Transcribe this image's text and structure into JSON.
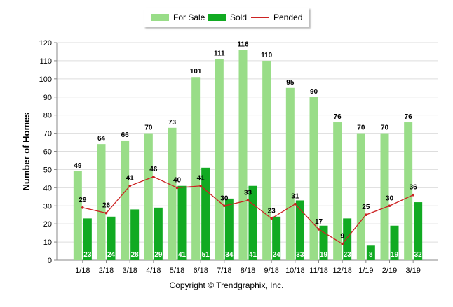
{
  "chart_data": {
    "type": "bar",
    "ylabel": "Number of Homes",
    "xlabel": "",
    "ylim": [
      0,
      120
    ],
    "yticks": [
      0,
      10,
      20,
      30,
      40,
      50,
      60,
      70,
      80,
      90,
      100,
      110,
      120
    ],
    "grid": true,
    "legend_position": "top-center",
    "categories": [
      "1/18",
      "2/18",
      "3/18",
      "4/18",
      "5/18",
      "6/18",
      "7/18",
      "8/18",
      "9/18",
      "10/18",
      "11/18",
      "12/18",
      "1/19",
      "2/19",
      "3/19"
    ],
    "series": [
      {
        "name": "For Sale",
        "type": "bar",
        "color": "#99dd88",
        "values": [
          49,
          64,
          66,
          70,
          73,
          101,
          111,
          116,
          110,
          95,
          90,
          76,
          70,
          70,
          76
        ]
      },
      {
        "name": "Sold",
        "type": "bar",
        "color": "#11aa22",
        "values": [
          23,
          24,
          28,
          29,
          41,
          51,
          34,
          41,
          24,
          33,
          19,
          23,
          8,
          19,
          32
        ]
      },
      {
        "name": "Pended",
        "type": "line",
        "color": "#cc2222",
        "values": [
          29,
          26,
          41,
          46,
          40,
          41,
          30,
          33,
          23,
          31,
          17,
          9,
          25,
          30,
          36
        ]
      }
    ]
  },
  "legend": {
    "for_sale": "For Sale",
    "sold": "Sold",
    "pended": "Pended"
  },
  "footer": {
    "copyright": "Copyright © Trendgraphix, Inc."
  },
  "colors": {
    "for_sale": "#99dd88",
    "sold": "#11aa22",
    "pended": "#cc2222",
    "grid": "#dddddd"
  }
}
